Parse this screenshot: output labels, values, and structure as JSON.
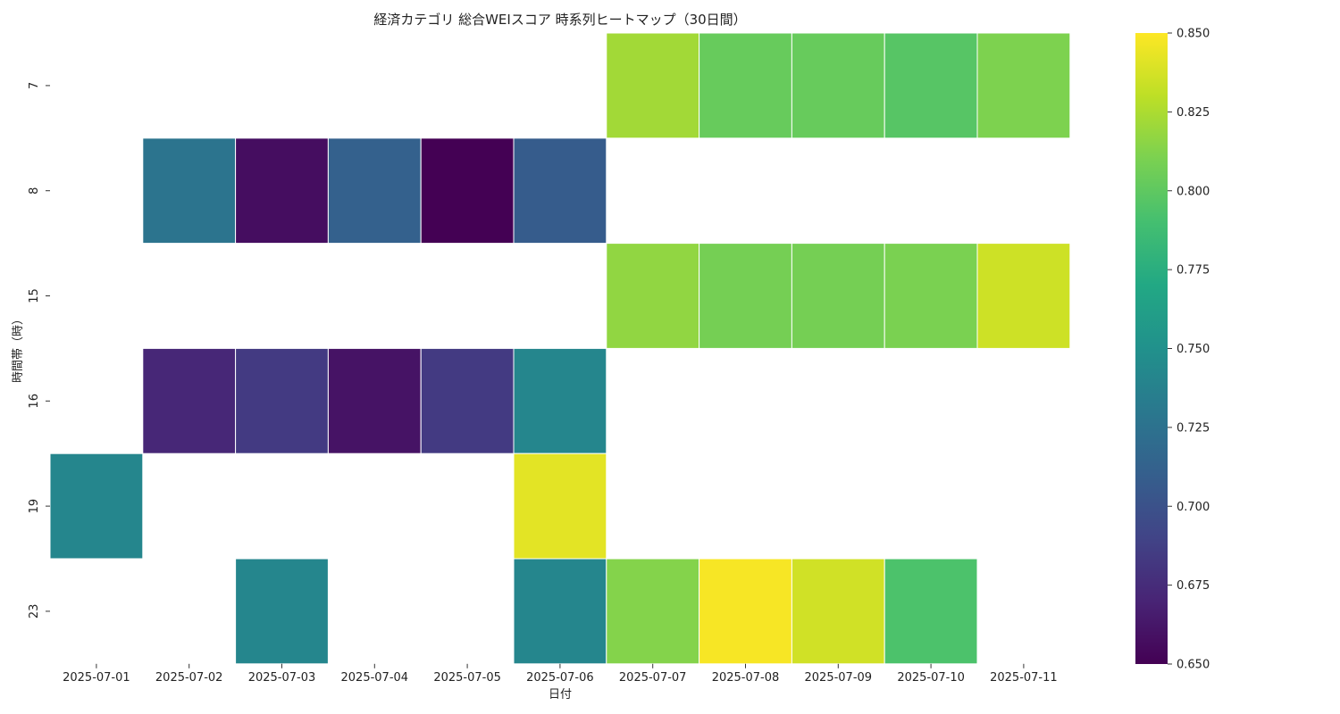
{
  "chart_data": {
    "type": "heatmap",
    "title": "経済カテゴリ 総合WEIスコア 時系列ヒートマップ（30日間）",
    "xlabel": "日付",
    "ylabel": "時間帯（時）",
    "x_categories": [
      "2025-07-01",
      "2025-07-02",
      "2025-07-03",
      "2025-07-04",
      "2025-07-05",
      "2025-07-06",
      "2025-07-07",
      "2025-07-08",
      "2025-07-09",
      "2025-07-10",
      "2025-07-11"
    ],
    "y_categories": [
      "7",
      "8",
      "15",
      "16",
      "19",
      "23"
    ],
    "values": [
      [
        null,
        null,
        null,
        null,
        null,
        null,
        0.822,
        0.803,
        0.803,
        0.797,
        0.811
      ],
      [
        null,
        0.727,
        0.657,
        0.712,
        0.65,
        0.708,
        null,
        null,
        null,
        null,
        null
      ],
      [
        null,
        null,
        null,
        null,
        null,
        null,
        0.817,
        0.808,
        0.808,
        0.81,
        0.835
      ],
      [
        null,
        0.672,
        0.684,
        0.66,
        0.684,
        0.741,
        null,
        null,
        null,
        null,
        null
      ],
      [
        0.741,
        null,
        null,
        null,
        null,
        0.842,
        null,
        null,
        null,
        null,
        null
      ],
      [
        null,
        null,
        0.741,
        null,
        null,
        0.741,
        0.813,
        0.848,
        0.836,
        0.793,
        null
      ]
    ],
    "colormap": "viridis",
    "colorbar": {
      "range": [
        0.65,
        0.85
      ],
      "ticks": [
        "0.650",
        "0.675",
        "0.700",
        "0.725",
        "0.750",
        "0.775",
        "0.800",
        "0.825",
        "0.850"
      ]
    },
    "grid": false
  }
}
